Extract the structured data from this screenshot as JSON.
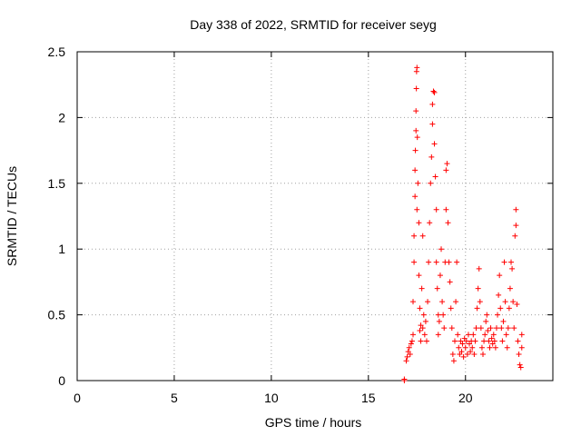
{
  "chart_data": {
    "type": "scatter",
    "title": "Day 338 of 2022, SRMTID for receiver seyg",
    "xlabel": "GPS time / hours",
    "ylabel": "SRMTID / TECUs",
    "xlim": [
      0,
      24.5
    ],
    "ylim": [
      0,
      2.5
    ],
    "x_ticks": [
      0,
      5,
      10,
      15,
      20
    ],
    "x_tick_labels": [
      "0",
      "5",
      "10",
      "15",
      "20"
    ],
    "y_ticks": [
      0,
      0.5,
      1,
      1.5,
      2,
      2.5
    ],
    "y_tick_labels": [
      "0",
      "0.5",
      "1",
      "1.5",
      "2",
      "2.5"
    ],
    "grid": true,
    "marker": "+",
    "color": "#ff0000",
    "series": [
      {
        "name": "SRMTID",
        "points": [
          [
            16.85,
            0.0
          ],
          [
            16.85,
            0.01
          ],
          [
            16.95,
            0.15
          ],
          [
            17.0,
            0.18
          ],
          [
            17.05,
            0.22
          ],
          [
            17.1,
            0.25
          ],
          [
            17.15,
            0.2
          ],
          [
            17.2,
            0.28
          ],
          [
            17.25,
            0.3
          ],
          [
            17.3,
            0.35
          ],
          [
            17.3,
            0.6
          ],
          [
            17.35,
            0.9
          ],
          [
            17.35,
            1.1
          ],
          [
            17.4,
            1.4
          ],
          [
            17.4,
            1.6
          ],
          [
            17.42,
            1.75
          ],
          [
            17.45,
            1.9
          ],
          [
            17.45,
            2.05
          ],
          [
            17.47,
            2.22
          ],
          [
            17.48,
            2.35
          ],
          [
            17.5,
            2.38
          ],
          [
            17.5,
            1.3
          ],
          [
            17.52,
            1.85
          ],
          [
            17.55,
            1.5
          ],
          [
            17.6,
            1.2
          ],
          [
            17.6,
            0.8
          ],
          [
            17.65,
            0.55
          ],
          [
            17.65,
            0.38
          ],
          [
            17.7,
            0.42
          ],
          [
            17.7,
            0.3
          ],
          [
            17.75,
            0.7
          ],
          [
            17.8,
            1.1
          ],
          [
            17.8,
            0.4
          ],
          [
            17.85,
            0.5
          ],
          [
            17.9,
            0.35
          ],
          [
            17.95,
            0.45
          ],
          [
            18.0,
            0.3
          ],
          [
            18.05,
            0.6
          ],
          [
            18.1,
            0.9
          ],
          [
            18.15,
            1.2
          ],
          [
            18.2,
            1.5
          ],
          [
            18.25,
            1.7
          ],
          [
            18.3,
            1.95
          ],
          [
            18.3,
            2.1
          ],
          [
            18.35,
            2.2
          ],
          [
            18.4,
            2.19
          ],
          [
            18.4,
            1.8
          ],
          [
            18.45,
            1.55
          ],
          [
            18.5,
            1.3
          ],
          [
            18.5,
            0.9
          ],
          [
            18.55,
            0.7
          ],
          [
            18.6,
            0.5
          ],
          [
            18.6,
            0.35
          ],
          [
            18.65,
            0.45
          ],
          [
            18.7,
            0.8
          ],
          [
            18.75,
            1.0
          ],
          [
            18.8,
            0.6
          ],
          [
            18.85,
            0.5
          ],
          [
            18.9,
            0.4
          ],
          [
            18.95,
            0.9
          ],
          [
            19.0,
            1.3
          ],
          [
            19.0,
            1.6
          ],
          [
            19.05,
            1.65
          ],
          [
            19.1,
            1.2
          ],
          [
            19.15,
            0.9
          ],
          [
            19.2,
            0.75
          ],
          [
            19.25,
            0.55
          ],
          [
            19.3,
            0.4
          ],
          [
            19.35,
            0.2
          ],
          [
            19.4,
            0.15
          ],
          [
            19.45,
            0.3
          ],
          [
            19.5,
            0.6
          ],
          [
            19.55,
            0.9
          ],
          [
            19.6,
            0.35
          ],
          [
            19.65,
            0.25
          ],
          [
            19.7,
            0.2
          ],
          [
            19.75,
            0.3
          ],
          [
            19.8,
            0.22
          ],
          [
            19.85,
            0.28
          ],
          [
            19.9,
            0.18
          ],
          [
            19.95,
            0.32
          ],
          [
            20.0,
            0.25
          ],
          [
            20.05,
            0.3
          ],
          [
            20.1,
            0.2
          ],
          [
            20.15,
            0.35
          ],
          [
            20.2,
            0.28
          ],
          [
            20.25,
            0.22
          ],
          [
            20.3,
            0.3
          ],
          [
            20.35,
            0.25
          ],
          [
            20.4,
            0.35
          ],
          [
            20.45,
            0.2
          ],
          [
            20.5,
            0.3
          ],
          [
            20.55,
            0.4
          ],
          [
            20.6,
            0.55
          ],
          [
            20.65,
            0.7
          ],
          [
            20.7,
            0.85
          ],
          [
            20.75,
            0.6
          ],
          [
            20.8,
            0.4
          ],
          [
            20.85,
            0.25
          ],
          [
            20.9,
            0.2
          ],
          [
            20.95,
            0.3
          ],
          [
            21.0,
            0.35
          ],
          [
            21.05,
            0.45
          ],
          [
            21.1,
            0.5
          ],
          [
            21.15,
            0.38
          ],
          [
            21.2,
            0.3
          ],
          [
            21.25,
            0.25
          ],
          [
            21.3,
            0.4
          ],
          [
            21.35,
            0.32
          ],
          [
            21.4,
            0.28
          ],
          [
            21.45,
            0.35
          ],
          [
            21.5,
            0.3
          ],
          [
            21.55,
            0.25
          ],
          [
            21.6,
            0.4
          ],
          [
            21.65,
            0.5
          ],
          [
            21.7,
            0.65
          ],
          [
            21.75,
            0.8
          ],
          [
            21.8,
            0.55
          ],
          [
            21.85,
            0.4
          ],
          [
            21.9,
            0.3
          ],
          [
            21.95,
            0.45
          ],
          [
            22.0,
            0.9
          ],
          [
            22.05,
            0.6
          ],
          [
            22.1,
            0.35
          ],
          [
            22.15,
            0.25
          ],
          [
            22.2,
            0.4
          ],
          [
            22.25,
            0.55
          ],
          [
            22.3,
            0.7
          ],
          [
            22.35,
            0.9
          ],
          [
            22.4,
            0.85
          ],
          [
            22.45,
            0.6
          ],
          [
            22.5,
            0.4
          ],
          [
            22.55,
            1.1
          ],
          [
            22.6,
            1.3
          ],
          [
            22.6,
            1.18
          ],
          [
            22.65,
            0.58
          ],
          [
            22.7,
            0.3
          ],
          [
            22.75,
            0.2
          ],
          [
            22.8,
            0.12
          ],
          [
            22.85,
            0.1
          ],
          [
            22.9,
            0.25
          ],
          [
            22.9,
            0.35
          ]
        ]
      }
    ]
  }
}
